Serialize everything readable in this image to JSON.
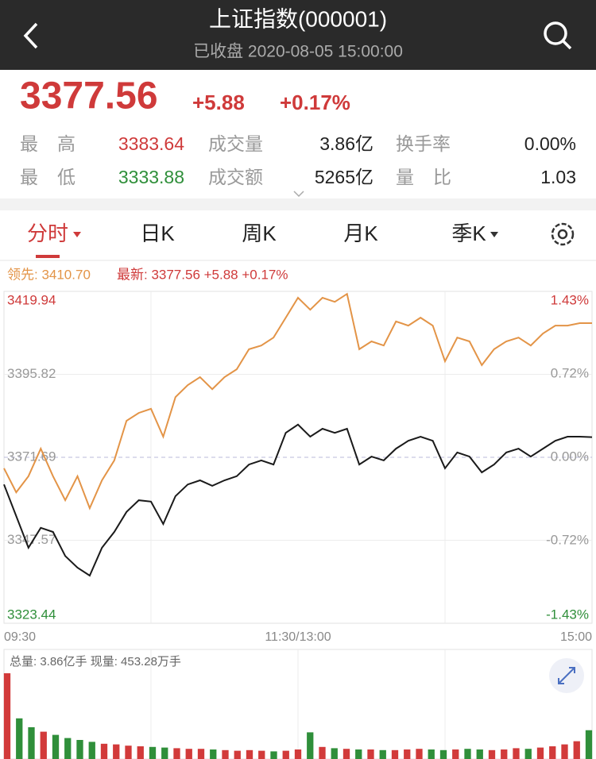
{
  "header": {
    "title": "上证指数(000001)",
    "subtitle": "已收盘 2020-08-05 15:00:00"
  },
  "quote": {
    "price": "3377.56",
    "change": "+5.88",
    "percent": "+0.17%",
    "stats": [
      [
        "最高",
        "3383.64",
        "成交量",
        "3.86亿",
        "换手率",
        "0.00%"
      ],
      [
        "最低",
        "3333.88",
        "成交额",
        "5265亿",
        "量比",
        "1.03"
      ]
    ]
  },
  "tabs": [
    "分时",
    "日K",
    "周K",
    "月K",
    "季K"
  ],
  "chart_data": [
    {
      "type": "line",
      "legend": [
        "领先: 3410.70",
        "最新: 3377.56 +5.88 +0.17%"
      ],
      "x": [
        0,
        5,
        10,
        15,
        20,
        25,
        30,
        35,
        40,
        45,
        50,
        55,
        60,
        65,
        70,
        75,
        80,
        85,
        90,
        95,
        100,
        105,
        110,
        115,
        120,
        125,
        130,
        135,
        140,
        145,
        150,
        155,
        160,
        165,
        170,
        175,
        180,
        185,
        190,
        195,
        200,
        205,
        210,
        215,
        220,
        225,
        230,
        235,
        240
      ],
      "xlim": [
        0,
        240
      ],
      "xticks": [
        {
          "value": 0,
          "label": "09:30"
        },
        {
          "value": 120,
          "label": "11:30/13:00"
        },
        {
          "value": 240,
          "label": "15:00"
        }
      ],
      "ylim": [
        3323.44,
        3419.94
      ],
      "yticks": [
        3323.44,
        3347.57,
        3371.69,
        3395.82,
        3419.94
      ],
      "y2lim": [
        -1.43,
        1.43
      ],
      "y2ticks": [
        {
          "value": -1.43,
          "label": "-1.43%"
        },
        {
          "value": -0.72,
          "label": "-0.72%"
        },
        {
          "value": 0,
          "label": "0.00%"
        },
        {
          "value": 0.72,
          "label": "0.72%"
        },
        {
          "value": 1.43,
          "label": "1.43%"
        }
      ],
      "grid": true,
      "series": [
        {
          "color": "#e39447",
          "values": [
            3368.5,
            3361.5,
            3366.2,
            3374.2,
            3366.2,
            3359.2,
            3366.2,
            3356.9,
            3365,
            3370.8,
            3382.3,
            3384.6,
            3385.8,
            3377.7,
            3389.2,
            3392.7,
            3395,
            3391.5,
            3395,
            3397.3,
            3403.1,
            3404.2,
            3406.5,
            3412.3,
            3418.1,
            3414.6,
            3418.1,
            3416.9,
            3419.2,
            3403.1,
            3405.4,
            3404.2,
            3411.2,
            3410,
            3412.3,
            3410,
            3399.6,
            3406.5,
            3405.4,
            3398.5,
            3403.1,
            3405.4,
            3406.5,
            3404.2,
            3407.7,
            3410,
            3410,
            3410.7,
            3410.7
          ]
        },
        {
          "color": "#1a1a1a",
          "values": [
            3363.8,
            3354.6,
            3345.4,
            3351.2,
            3350,
            3343,
            3339.6,
            3337.3,
            3345.4,
            3350,
            3355.8,
            3359.2,
            3358.8,
            3352.3,
            3360.4,
            3363.8,
            3365,
            3363.4,
            3365,
            3366.2,
            3369.6,
            3370.8,
            3369.6,
            3378.8,
            3381.2,
            3377.7,
            3380,
            3378.8,
            3380,
            3369.6,
            3371.9,
            3370.8,
            3374.2,
            3376.5,
            3377.7,
            3376.5,
            3368.5,
            3373.1,
            3371.9,
            3367.3,
            3369.6,
            3373.1,
            3374.2,
            3371.9,
            3374.2,
            3376.5,
            3377.7,
            3377.7,
            3377.56
          ]
        }
      ]
    },
    {
      "type": "bar",
      "title": "总量: 3.86亿手 现量: 453.28万手",
      "x": [
        0,
        5,
        10,
        15,
        20,
        25,
        30,
        35,
        40,
        45,
        50,
        55,
        60,
        65,
        70,
        75,
        80,
        85,
        90,
        95,
        100,
        105,
        110,
        115,
        120,
        125,
        130,
        135,
        140,
        145,
        150,
        155,
        160,
        165,
        170,
        175,
        180,
        185,
        190,
        195,
        200,
        205,
        210,
        215,
        220,
        225,
        230,
        235,
        240
      ],
      "xlim": [
        0,
        240
      ],
      "up_color": "#d23a3a",
      "down_color": "#2f8f3a",
      "values": [
        1350,
        640,
        500,
        430,
        380,
        330,
        300,
        270,
        240,
        230,
        210,
        200,
        190,
        180,
        170,
        160,
        160,
        150,
        140,
        130,
        140,
        130,
        120,
        130,
        150,
        420,
        190,
        170,
        160,
        150,
        150,
        140,
        140,
        150,
        160,
        150,
        140,
        150,
        160,
        150,
        140,
        150,
        170,
        160,
        180,
        200,
        230,
        280,
        453.28
      ]
    }
  ]
}
